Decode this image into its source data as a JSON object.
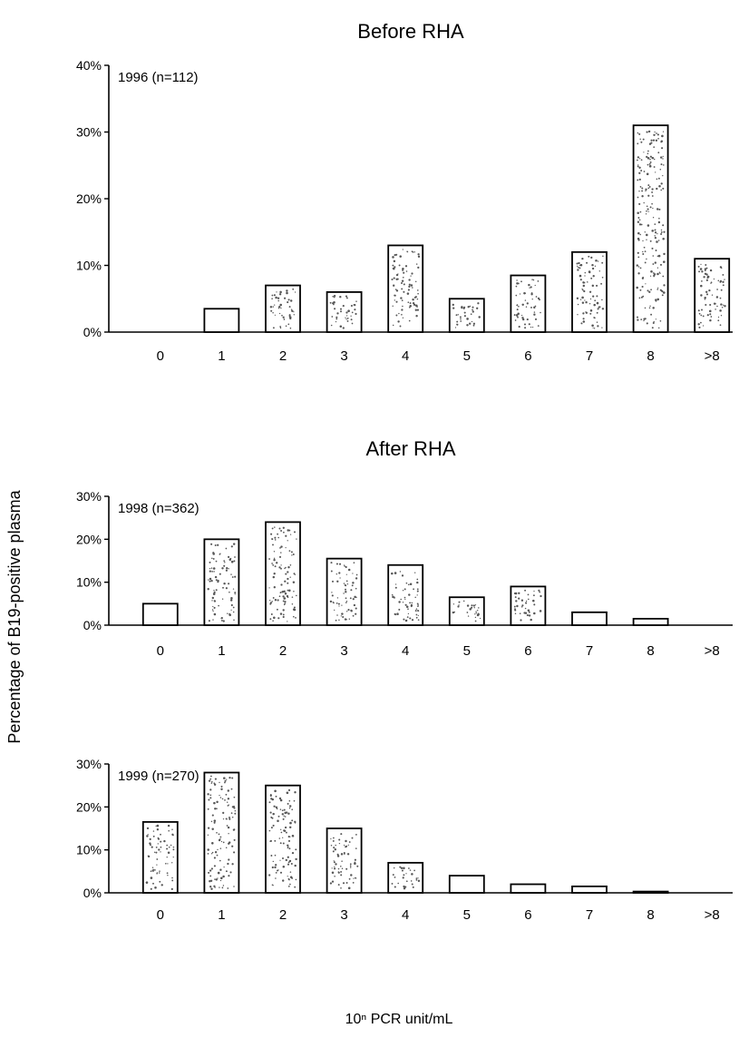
{
  "figure": {
    "section_titles": [
      "Before RHA",
      "After RHA"
    ],
    "ylabel": "Percentage of B19-positive plasma",
    "xlabel": "10ⁿ PCR unit/mL"
  },
  "chart_data": [
    {
      "type": "bar",
      "title": "Before RHA",
      "annotation": "1996 (n=112)",
      "categories": [
        "0",
        "1",
        "2",
        "3",
        "4",
        "5",
        "6",
        "7",
        "8",
        ">8"
      ],
      "values": [
        0,
        3.5,
        7,
        6,
        13,
        5,
        8.5,
        12,
        31,
        11
      ],
      "ylim": [
        0,
        40
      ],
      "yticks": [
        "0%",
        "10%",
        "20%",
        "30%",
        "40%"
      ],
      "grid": false
    },
    {
      "type": "bar",
      "title": "After RHA",
      "annotation": "1998 (n=362)",
      "categories": [
        "0",
        "1",
        "2",
        "3",
        "4",
        "5",
        "6",
        "7",
        "8",
        ">8"
      ],
      "values": [
        5,
        20,
        24,
        15.5,
        14,
        6.5,
        9,
        3,
        1.5,
        0
      ],
      "ylim": [
        0,
        30
      ],
      "yticks": [
        "0%",
        "10%",
        "20%",
        "30%"
      ],
      "grid": false
    },
    {
      "type": "bar",
      "annotation": "1999 (n=270)",
      "categories": [
        "0",
        "1",
        "2",
        "3",
        "4",
        "5",
        "6",
        "7",
        "8",
        ">8"
      ],
      "values": [
        16.5,
        28,
        25,
        15,
        7,
        4,
        2,
        1.5,
        0.3,
        0
      ],
      "ylim": [
        0,
        30
      ],
      "yticks": [
        "0%",
        "10%",
        "20%",
        "30%"
      ],
      "grid": false
    }
  ]
}
